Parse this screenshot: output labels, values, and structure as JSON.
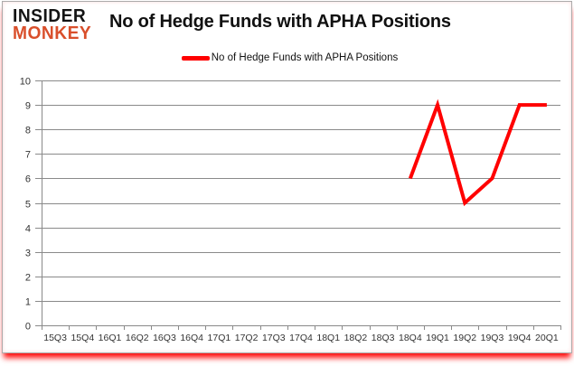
{
  "header": {
    "logo_line1": "INSIDER",
    "logo_line2": "MONKEY",
    "logo_color_top": "#141414",
    "logo_color_bottom": "#d94f2b",
    "title": "No of Hedge Funds with APHA Positions"
  },
  "legend": {
    "label": "No of Hedge Funds with APHA Positions",
    "swatch_color": "#ff0000"
  },
  "chart_data": {
    "type": "line",
    "title": "No of Hedge Funds with APHA Positions",
    "categories": [
      "15Q3",
      "15Q4",
      "16Q1",
      "16Q2",
      "16Q3",
      "16Q4",
      "17Q1",
      "17Q2",
      "17Q3",
      "17Q4",
      "18Q1",
      "18Q2",
      "18Q3",
      "18Q4",
      "19Q1",
      "19Q2",
      "19Q3",
      "19Q4",
      "20Q1"
    ],
    "series": [
      {
        "name": "No of Hedge Funds with APHA Positions",
        "color": "#ff0000",
        "values": [
          null,
          null,
          null,
          null,
          null,
          null,
          null,
          null,
          null,
          null,
          null,
          null,
          null,
          6,
          9,
          5,
          6,
          9,
          9
        ]
      }
    ],
    "xlabel": "",
    "ylabel": "",
    "ylim": [
      0,
      10
    ],
    "ytick_step": 1,
    "yticks": [
      0,
      1,
      2,
      3,
      4,
      5,
      6,
      7,
      8,
      9,
      10
    ],
    "grid": true,
    "legend_position": "top",
    "gridline_color": "#8a8a8a",
    "axis_color": "#8a8a8a",
    "tick_label_color": "#333333",
    "line_width": 4
  }
}
